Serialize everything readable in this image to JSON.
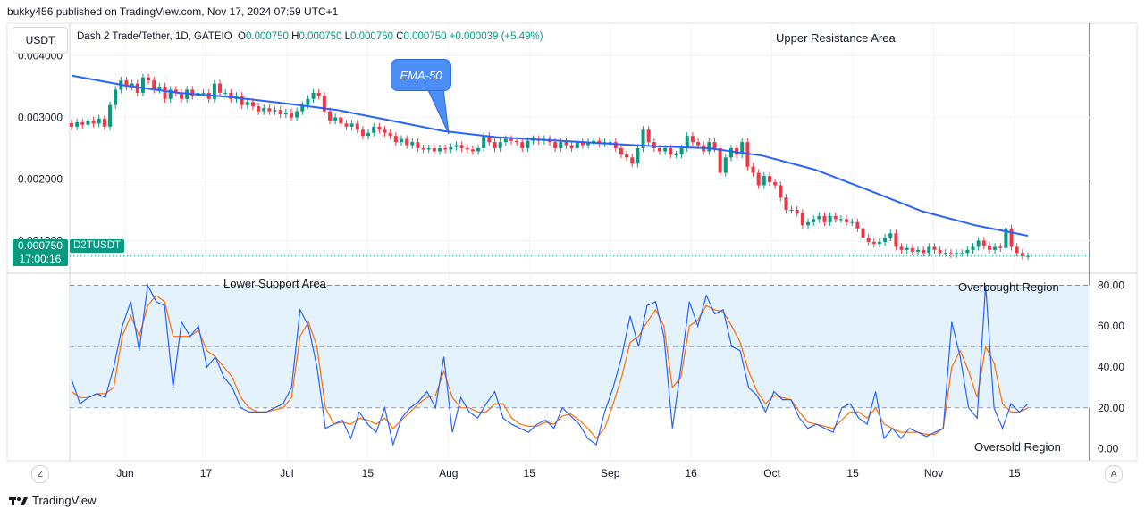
{
  "header": {
    "published_by": "bukky456 published on TradingView.com, Nov 17, 2024 07:59 UTC+1"
  },
  "chart_header": {
    "currency_button": "USDT",
    "symbol_line": "Dash 2 Trade/Tether, 1D, GATEIO",
    "o_label": "O",
    "o_value": "0.000750",
    "h_label": "H",
    "h_value": "0.000750",
    "l_label": "L",
    "l_value": "0.000750",
    "c_label": "C",
    "c_value": "0.000750",
    "change": "+0.000039 (+5.49%)"
  },
  "price_tag": {
    "price": "0.000750",
    "countdown": "17:00:16",
    "symbol": "D2TUSDT"
  },
  "annotations": {
    "upper_resistance": "Upper Resistance Area",
    "lower_support": "Lower Support Area",
    "overbought": "Overbought Region",
    "oversold": "Oversold Region",
    "ema_callout": "EMA-50"
  },
  "buttons": {
    "left_z": "Z",
    "right_a": "A"
  },
  "footer": {
    "brand": "TradingView"
  },
  "colors": {
    "up": "#089981",
    "down": "#f23645",
    "ema": "#2962ff",
    "stoch_k": "#2962ff",
    "stoch_d": "#ff6d00",
    "band": "#e3f2fd"
  },
  "chart_data": [
    {
      "type": "candlestick",
      "symbol": "D2TUSDT",
      "y_ticks": [
        "0.004000",
        "0.003000",
        "0.002000",
        "0.001000"
      ],
      "ylim": [
        0.0005,
        0.0045
      ],
      "x_ticks": [
        "Jun",
        "17",
        "Jul",
        "15",
        "Aug",
        "15",
        "Sep",
        "16",
        "Oct",
        "15",
        "Nov",
        "15"
      ],
      "last_price": 0.00075,
      "closes": [
        0.00285,
        0.00292,
        0.00288,
        0.00295,
        0.0029,
        0.00298,
        0.00285,
        0.0032,
        0.00345,
        0.0036,
        0.0035,
        0.00355,
        0.0034,
        0.00365,
        0.0036,
        0.00345,
        0.0035,
        0.0033,
        0.00345,
        0.0034,
        0.0033,
        0.00345,
        0.00335,
        0.0034,
        0.0034,
        0.0033,
        0.00355,
        0.0034,
        0.0034,
        0.0033,
        0.00335,
        0.0032,
        0.00325,
        0.00318,
        0.0031,
        0.00315,
        0.0031,
        0.00312,
        0.00305,
        0.00308,
        0.003,
        0.0031,
        0.0032,
        0.0033,
        0.0034,
        0.00335,
        0.0031,
        0.00295,
        0.003,
        0.0029,
        0.00285,
        0.0029,
        0.0028,
        0.0027,
        0.00275,
        0.00285,
        0.0028,
        0.00275,
        0.0027,
        0.0026,
        0.00265,
        0.00255,
        0.0026,
        0.0025,
        0.00248,
        0.0025,
        0.00245,
        0.0025,
        0.00248,
        0.00252,
        0.00255,
        0.0025,
        0.00248,
        0.00245,
        0.0025,
        0.0027,
        0.0026,
        0.0025,
        0.0026,
        0.00265,
        0.00262,
        0.0026,
        0.0025,
        0.00262,
        0.00265,
        0.00262,
        0.00265,
        0.0026,
        0.0025,
        0.0026,
        0.00255,
        0.0025,
        0.0026,
        0.00255,
        0.0026,
        0.00262,
        0.00258,
        0.0026,
        0.0026,
        0.0025,
        0.0024,
        0.00235,
        0.00225,
        0.0025,
        0.0028,
        0.0026,
        0.0025,
        0.00245,
        0.0025,
        0.0024,
        0.0024,
        0.0025,
        0.0027,
        0.0026,
        0.00255,
        0.00245,
        0.0026,
        0.0025,
        0.0021,
        0.00235,
        0.0025,
        0.0024,
        0.0026,
        0.0022,
        0.0021,
        0.0019,
        0.00205,
        0.00195,
        0.0019,
        0.0017,
        0.0015,
        0.0015,
        0.00145,
        0.00125,
        0.0013,
        0.00135,
        0.0014,
        0.0013,
        0.0014,
        0.00135,
        0.00135,
        0.0013,
        0.0013,
        0.0012,
        0.00105,
        0.00098,
        0.00095,
        0.00098,
        0.00105,
        0.00112,
        0.0009,
        0.00085,
        0.00088,
        0.00082,
        0.00085,
        0.0008,
        0.0009,
        0.00085,
        0.0008,
        0.0008,
        0.00078,
        0.0008,
        0.0008,
        0.00085,
        0.0009,
        0.001,
        0.00092,
        0.00085,
        0.0009,
        0.00088,
        0.0012,
        0.0009,
        0.0008,
        0.00075,
        0.00075
      ]
    },
    {
      "type": "line",
      "name": "EMA-50",
      "points": [
        [
          0,
          0.00368
        ],
        [
          10,
          0.00352
        ],
        [
          20,
          0.0034
        ],
        [
          30,
          0.00333
        ],
        [
          40,
          0.00323
        ],
        [
          50,
          0.00312
        ],
        [
          60,
          0.00295
        ],
        [
          70,
          0.00278
        ],
        [
          80,
          0.00268
        ],
        [
          90,
          0.00263
        ],
        [
          100,
          0.00258
        ],
        [
          110,
          0.00253
        ],
        [
          120,
          0.0025
        ],
        [
          130,
          0.00238
        ],
        [
          140,
          0.00215
        ],
        [
          150,
          0.00182
        ],
        [
          160,
          0.00148
        ],
        [
          170,
          0.00125
        ],
        [
          180,
          0.00108
        ]
      ]
    },
    {
      "type": "line",
      "name": "Stochastic",
      "y_ticks": [
        "80.00",
        "60.00",
        "40.00",
        "20.00",
        "0.00"
      ],
      "ylim": [
        -5,
        85
      ],
      "band": [
        20,
        80
      ],
      "midline": 50,
      "k": [
        34,
        22,
        25,
        27,
        25,
        40,
        60,
        72,
        48,
        80,
        72,
        70,
        30,
        62,
        55,
        60,
        40,
        45,
        35,
        30,
        20,
        18,
        18,
        18,
        20,
        22,
        30,
        68,
        60,
        40,
        10,
        12,
        14,
        5,
        18,
        12,
        8,
        20,
        2,
        15,
        20,
        23,
        28,
        20,
        45,
        8,
        25,
        18,
        15,
        22,
        28,
        15,
        12,
        10,
        8,
        12,
        14,
        10,
        20,
        16,
        12,
        5,
        2,
        18,
        30,
        45,
        65,
        50,
        70,
        72,
        55,
        10,
        40,
        72,
        60,
        75,
        66,
        68,
        50,
        48,
        30,
        26,
        18,
        28,
        24,
        24,
        15,
        10,
        12,
        10,
        8,
        20,
        22,
        15,
        12,
        28,
        5,
        10,
        5,
        10,
        8,
        6,
        8,
        10,
        62,
        45,
        20,
        15,
        80,
        20,
        10,
        22,
        18,
        22
      ],
      "d": [
        28,
        25,
        25,
        27,
        27,
        30,
        55,
        65,
        55,
        70,
        75,
        72,
        55,
        55,
        55,
        58,
        48,
        45,
        40,
        35,
        25,
        20,
        18,
        18,
        19,
        20,
        25,
        55,
        62,
        50,
        20,
        12,
        13,
        12,
        15,
        14,
        12,
        15,
        10,
        14,
        18,
        22,
        25,
        26,
        38,
        25,
        20,
        20,
        18,
        18,
        22,
        22,
        15,
        12,
        11,
        11,
        13,
        12,
        16,
        17,
        14,
        10,
        5,
        10,
        22,
        35,
        52,
        55,
        62,
        68,
        60,
        30,
        35,
        60,
        63,
        70,
        68,
        67,
        60,
        52,
        38,
        28,
        22,
        26,
        25,
        24,
        18,
        13,
        12,
        11,
        10,
        14,
        18,
        18,
        15,
        20,
        12,
        10,
        8,
        8,
        8,
        7,
        7,
        10,
        40,
        48,
        38,
        25,
        50,
        42,
        22,
        18,
        18,
        20
      ]
    }
  ]
}
